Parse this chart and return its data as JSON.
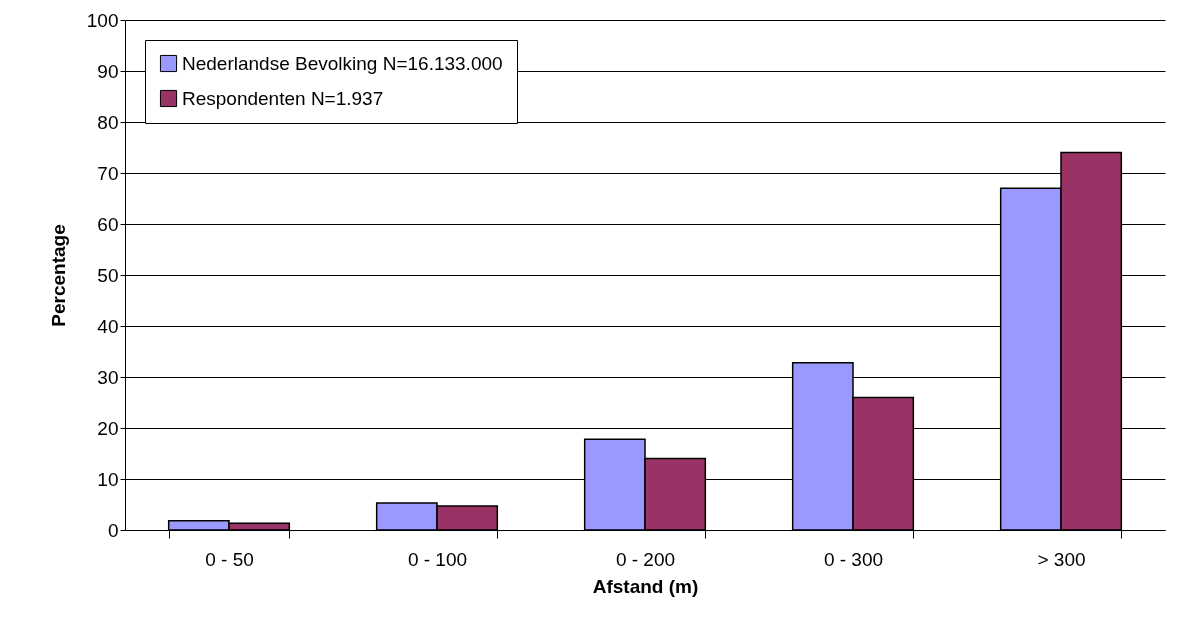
{
  "chart_data": {
    "type": "bar",
    "xlabel": "Afstand (m)",
    "ylabel": "Percentage",
    "categories": [
      "0 -   50",
      "0 - 100",
      "0 - 200",
      "0 - 300",
      "> 300"
    ],
    "series": [
      {
        "name": "Nederlandse Bevolking N=16.133.000",
        "color": "#9999ff",
        "values": [
          1.8,
          5.3,
          17.8,
          32.8,
          67
        ]
      },
      {
        "name": "Respondenten N=1.937",
        "color": "#993366",
        "values": [
          1.3,
          4.7,
          14,
          26,
          74
        ]
      }
    ],
    "ylim": [
      0,
      100
    ],
    "yticks": [
      0,
      10,
      20,
      30,
      40,
      50,
      60,
      70,
      80,
      90,
      100
    ],
    "grid": "y",
    "legend": "top left"
  }
}
